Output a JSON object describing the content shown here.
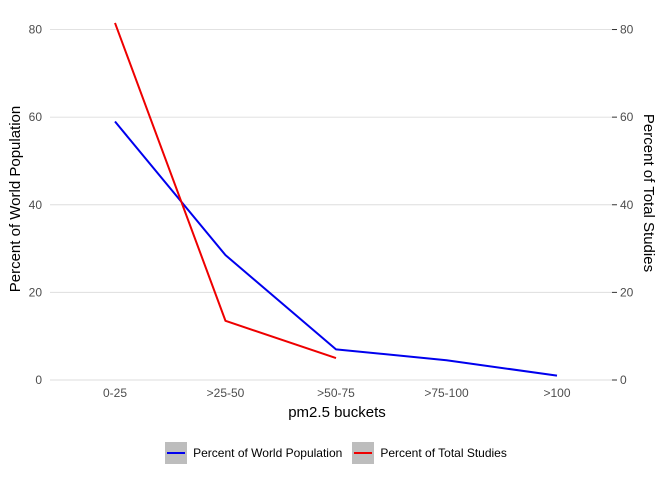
{
  "chart_data": {
    "type": "line",
    "categories": [
      "0-25",
      ">25-50",
      ">50-75",
      ">75-100",
      ">100"
    ],
    "series": [
      {
        "name": "Percent of World Population",
        "color": "#0000ee",
        "values": [
          59,
          28.5,
          7,
          4.5,
          1
        ]
      },
      {
        "name": "Percent of Total Studies",
        "color": "#ee0000",
        "values": [
          81.5,
          13.5,
          5,
          null,
          null
        ]
      }
    ],
    "xlabel": "pm2.5 buckets",
    "ylabel": "Percent of World Population",
    "y2label": "Percent of Total Studies",
    "ylim": [
      0,
      84
    ],
    "yticks": [
      0,
      20,
      40,
      60,
      80
    ],
    "grid": true,
    "legend_position": "bottom"
  }
}
